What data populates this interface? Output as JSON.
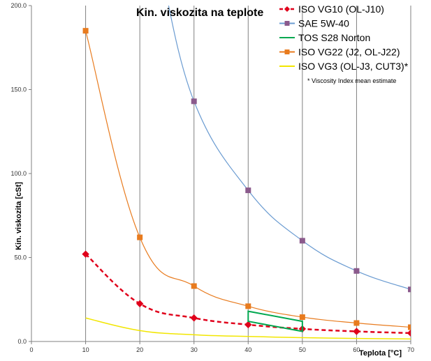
{
  "chart_data": {
    "type": "line",
    "title": "Kin. viskozita na teplote",
    "xlabel": "Teplota [°C]",
    "ylabel": "Kin. viskozita [cSt]",
    "xlim": [
      0,
      70
    ],
    "ylim": [
      0,
      200
    ],
    "x_ticks": [
      "0",
      "10",
      "20",
      "30",
      "40",
      "50",
      "60",
      "70"
    ],
    "y_ticks": [
      "0.0",
      "50.0",
      "100.0",
      "150.0",
      "200.0"
    ],
    "grid": "vertical",
    "legend_position": "top-right",
    "legend_note": "* Viscosity Index mean estimate",
    "series": [
      {
        "name": "ISO VG10 (OL-J10)",
        "color": "#e0001b",
        "style": "dashed",
        "marker": "diamond",
        "x": [
          10,
          20,
          30,
          40,
          50,
          60,
          70
        ],
        "y": [
          52,
          22.5,
          14,
          10,
          7.5,
          6,
          5
        ]
      },
      {
        "name": "SAE 5W-40",
        "color": "#6a9bd1",
        "style": "solid",
        "marker": "square",
        "x": [
          0,
          10,
          20,
          30,
          40,
          50,
          60,
          70
        ],
        "y": [
          null,
          null,
          null,
          143,
          90,
          60,
          42,
          31
        ]
      },
      {
        "name": "TOS S28 Norton",
        "color": "#00a850",
        "style": "solid",
        "marker": "none",
        "x": [
          40,
          40,
          50,
          50,
          40
        ],
        "y": [
          18,
          12,
          6,
          12,
          18
        ]
      },
      {
        "name": "ISO VG22 (J2, OL-J22)",
        "color": "#e87b1e",
        "style": "solid",
        "marker": "square",
        "x": [
          10,
          20,
          30,
          40,
          50,
          60,
          70
        ],
        "y": [
          185,
          62,
          33,
          21,
          14.5,
          11,
          8.5
        ]
      },
      {
        "name": "ISO VG3 (OL-J3, CUT3)*",
        "color": "#f2e600",
        "style": "solid",
        "marker": "none",
        "x": [
          10,
          20,
          30,
          40,
          50,
          60,
          70
        ],
        "y": [
          14,
          6.5,
          4,
          3,
          2.3,
          1.8,
          1.5
        ]
      }
    ]
  }
}
